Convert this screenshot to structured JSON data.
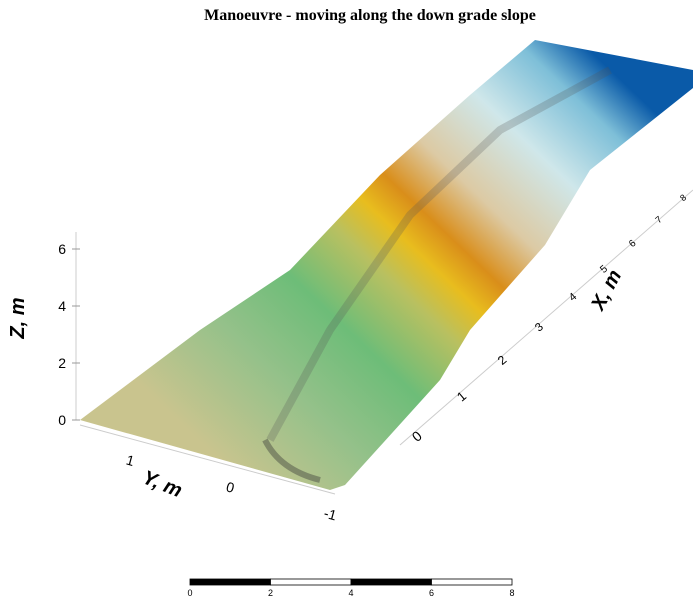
{
  "title": "Manoeuvre - moving along the down grade slope",
  "z_axis": {
    "label": "Z, m",
    "ticks": [
      0,
      2,
      4,
      6
    ]
  },
  "y_axis": {
    "label": "Y, m",
    "ticks": [
      1,
      0,
      -1
    ]
  },
  "x_axis": {
    "label": "X, m",
    "ticks": [
      0,
      1,
      2,
      3,
      4,
      5,
      6,
      7,
      8
    ]
  },
  "scale_bar": {
    "labels": [
      0,
      2,
      4,
      6,
      8
    ]
  }
}
